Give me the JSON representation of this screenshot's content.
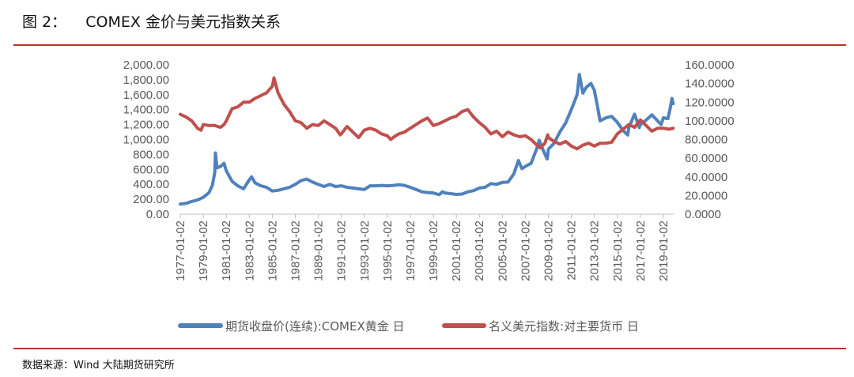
{
  "figure": {
    "title": "图 2：    COMEX 金价与美元指数关系",
    "source": "数据来源：Wind    大陆期货研究所"
  },
  "colors": {
    "gold": "#4f81bd",
    "dollar": "#c0504d",
    "rule": "#c0312b",
    "axis": "#595959"
  },
  "chart_data": {
    "type": "line",
    "title": "",
    "grid": false,
    "legend_position": "bottom",
    "y_left": {
      "range": [
        0,
        2000
      ],
      "ticks": [
        "0.00",
        "200.00",
        "400.00",
        "600.00",
        "800.00",
        "1,000.00",
        "1,200.00",
        "1,400.00",
        "1,600.00",
        "1,800.00",
        "2,000.00"
      ]
    },
    "y_right": {
      "range": [
        0,
        160
      ],
      "ticks": [
        "0.0000",
        "20.0000",
        "40.0000",
        "60.0000",
        "80.0000",
        "100.0000",
        "120.0000",
        "140.0000",
        "160.0000"
      ]
    },
    "x_ticks": [
      "1977-01-02",
      "1979-01-02",
      "1981-01-02",
      "1983-01-02",
      "1985-01-02",
      "1987-01-02",
      "1989-01-02",
      "1991-01-02",
      "1993-01-02",
      "1995-01-02",
      "1997-01-02",
      "1999-01-02",
      "2001-01-02",
      "2003-01-02",
      "2005-01-02",
      "2007-01-02",
      "2009-01-02",
      "2011-01-02",
      "2013-01-02",
      "2015-01-02",
      "2017-01-02",
      "2019-01-02"
    ],
    "x_range": [
      1977.0,
      2019.9
    ],
    "series": [
      {
        "name": "期货收盘价(连续):COMEX黄金 日",
        "axis": "left",
        "color": "#4f81bd",
        "points": [
          [
            1977.0,
            135
          ],
          [
            1977.5,
            145
          ],
          [
            1978.0,
            170
          ],
          [
            1978.5,
            190
          ],
          [
            1979.0,
            225
          ],
          [
            1979.5,
            290
          ],
          [
            1979.8,
            390
          ],
          [
            1980.0,
            560
          ],
          [
            1980.05,
            820
          ],
          [
            1980.2,
            620
          ],
          [
            1980.5,
            640
          ],
          [
            1980.8,
            680
          ],
          [
            1981.0,
            580
          ],
          [
            1981.5,
            440
          ],
          [
            1982.0,
            380
          ],
          [
            1982.5,
            340
          ],
          [
            1983.0,
            460
          ],
          [
            1983.2,
            500
          ],
          [
            1983.5,
            420
          ],
          [
            1984.0,
            380
          ],
          [
            1984.5,
            360
          ],
          [
            1985.0,
            310
          ],
          [
            1985.5,
            320
          ],
          [
            1986.0,
            340
          ],
          [
            1986.5,
            360
          ],
          [
            1987.0,
            400
          ],
          [
            1987.5,
            450
          ],
          [
            1988.0,
            470
          ],
          [
            1988.5,
            430
          ],
          [
            1989.0,
            400
          ],
          [
            1989.5,
            370
          ],
          [
            1990.0,
            400
          ],
          [
            1990.5,
            370
          ],
          [
            1991.0,
            380
          ],
          [
            1991.5,
            360
          ],
          [
            1992.0,
            350
          ],
          [
            1992.5,
            340
          ],
          [
            1993.0,
            330
          ],
          [
            1993.5,
            380
          ],
          [
            1994.0,
            380
          ],
          [
            1994.5,
            385
          ],
          [
            1995.0,
            380
          ],
          [
            1995.5,
            385
          ],
          [
            1996.0,
            395
          ],
          [
            1996.5,
            385
          ],
          [
            1997.0,
            360
          ],
          [
            1997.5,
            330
          ],
          [
            1998.0,
            300
          ],
          [
            1998.5,
            290
          ],
          [
            1999.0,
            285
          ],
          [
            1999.5,
            260
          ],
          [
            1999.8,
            300
          ],
          [
            2000.0,
            285
          ],
          [
            2000.5,
            275
          ],
          [
            2001.0,
            265
          ],
          [
            2001.5,
            270
          ],
          [
            2002.0,
            300
          ],
          [
            2002.5,
            315
          ],
          [
            2003.0,
            350
          ],
          [
            2003.5,
            360
          ],
          [
            2004.0,
            410
          ],
          [
            2004.5,
            400
          ],
          [
            2005.0,
            425
          ],
          [
            2005.5,
            430
          ],
          [
            2006.0,
            540
          ],
          [
            2006.4,
            720
          ],
          [
            2006.7,
            610
          ],
          [
            2007.0,
            640
          ],
          [
            2007.5,
            680
          ],
          [
            2008.0,
            880
          ],
          [
            2008.2,
            990
          ],
          [
            2008.6,
            840
          ],
          [
            2008.9,
            740
          ],
          [
            2009.0,
            870
          ],
          [
            2009.5,
            950
          ],
          [
            2010.0,
            1100
          ],
          [
            2010.5,
            1220
          ],
          [
            2011.0,
            1400
          ],
          [
            2011.5,
            1600
          ],
          [
            2011.7,
            1870
          ],
          [
            2012.0,
            1620
          ],
          [
            2012.3,
            1700
          ],
          [
            2012.7,
            1750
          ],
          [
            2013.0,
            1660
          ],
          [
            2013.3,
            1420
          ],
          [
            2013.5,
            1250
          ],
          [
            2014.0,
            1290
          ],
          [
            2014.5,
            1310
          ],
          [
            2015.0,
            1230
          ],
          [
            2015.5,
            1120
          ],
          [
            2015.9,
            1060
          ],
          [
            2016.0,
            1160
          ],
          [
            2016.5,
            1340
          ],
          [
            2016.9,
            1160
          ],
          [
            2017.0,
            1200
          ],
          [
            2017.5,
            1260
          ],
          [
            2018.0,
            1330
          ],
          [
            2018.5,
            1250
          ],
          [
            2018.8,
            1200
          ],
          [
            2019.0,
            1290
          ],
          [
            2019.4,
            1280
          ],
          [
            2019.6,
            1420
          ],
          [
            2019.75,
            1550
          ],
          [
            2019.85,
            1480
          ]
        ]
      },
      {
        "name": "名义美元指数:对主要货币 日",
        "axis": "right",
        "color": "#c0504d",
        "points": [
          [
            1977.0,
            107
          ],
          [
            1977.5,
            104
          ],
          [
            1978.0,
            100
          ],
          [
            1978.5,
            92
          ],
          [
            1978.8,
            90
          ],
          [
            1979.0,
            96
          ],
          [
            1979.5,
            95
          ],
          [
            1980.0,
            95
          ],
          [
            1980.5,
            93
          ],
          [
            1980.8,
            96
          ],
          [
            1981.0,
            100
          ],
          [
            1981.5,
            113
          ],
          [
            1982.0,
            115
          ],
          [
            1982.5,
            120
          ],
          [
            1983.0,
            120
          ],
          [
            1983.5,
            124
          ],
          [
            1984.0,
            127
          ],
          [
            1984.5,
            130
          ],
          [
            1985.0,
            137
          ],
          [
            1985.15,
            146
          ],
          [
            1985.5,
            130
          ],
          [
            1986.0,
            118
          ],
          [
            1986.5,
            110
          ],
          [
            1987.0,
            100
          ],
          [
            1987.5,
            98
          ],
          [
            1988.0,
            92
          ],
          [
            1988.5,
            96
          ],
          [
            1989.0,
            95
          ],
          [
            1989.5,
            100
          ],
          [
            1990.0,
            96
          ],
          [
            1990.5,
            92
          ],
          [
            1990.9,
            85
          ],
          [
            1991.0,
            86
          ],
          [
            1991.5,
            94
          ],
          [
            1992.0,
            88
          ],
          [
            1992.5,
            82
          ],
          [
            1993.0,
            90
          ],
          [
            1993.5,
            92
          ],
          [
            1994.0,
            90
          ],
          [
            1994.5,
            86
          ],
          [
            1995.0,
            84
          ],
          [
            1995.3,
            80
          ],
          [
            1995.6,
            83
          ],
          [
            1996.0,
            86
          ],
          [
            1996.5,
            88
          ],
          [
            1997.0,
            92
          ],
          [
            1997.5,
            96
          ],
          [
            1998.0,
            100
          ],
          [
            1998.5,
            103
          ],
          [
            1999.0,
            95
          ],
          [
            1999.5,
            97
          ],
          [
            2000.0,
            100
          ],
          [
            2000.5,
            103
          ],
          [
            2001.0,
            105
          ],
          [
            2001.5,
            110
          ],
          [
            2002.0,
            112
          ],
          [
            2002.5,
            104
          ],
          [
            2003.0,
            98
          ],
          [
            2003.5,
            93
          ],
          [
            2004.0,
            86
          ],
          [
            2004.5,
            89
          ],
          [
            2005.0,
            83
          ],
          [
            2005.5,
            88
          ],
          [
            2006.0,
            85
          ],
          [
            2006.5,
            83
          ],
          [
            2007.0,
            84
          ],
          [
            2007.5,
            80
          ],
          [
            2008.0,
            74
          ],
          [
            2008.3,
            71
          ],
          [
            2008.7,
            76
          ],
          [
            2008.95,
            85
          ],
          [
            2009.0,
            82
          ],
          [
            2009.5,
            78
          ],
          [
            2010.0,
            75
          ],
          [
            2010.5,
            78
          ],
          [
            2011.0,
            73
          ],
          [
            2011.5,
            70
          ],
          [
            2012.0,
            74
          ],
          [
            2012.5,
            76
          ],
          [
            2013.0,
            73
          ],
          [
            2013.5,
            76
          ],
          [
            2014.0,
            76
          ],
          [
            2014.5,
            77
          ],
          [
            2015.0,
            86
          ],
          [
            2015.5,
            91
          ],
          [
            2016.0,
            96
          ],
          [
            2016.5,
            93
          ],
          [
            2017.0,
            101
          ],
          [
            2017.5,
            95
          ],
          [
            2018.0,
            89
          ],
          [
            2018.5,
            92
          ],
          [
            2019.0,
            92
          ],
          [
            2019.5,
            91
          ],
          [
            2019.85,
            92
          ]
        ]
      }
    ]
  }
}
